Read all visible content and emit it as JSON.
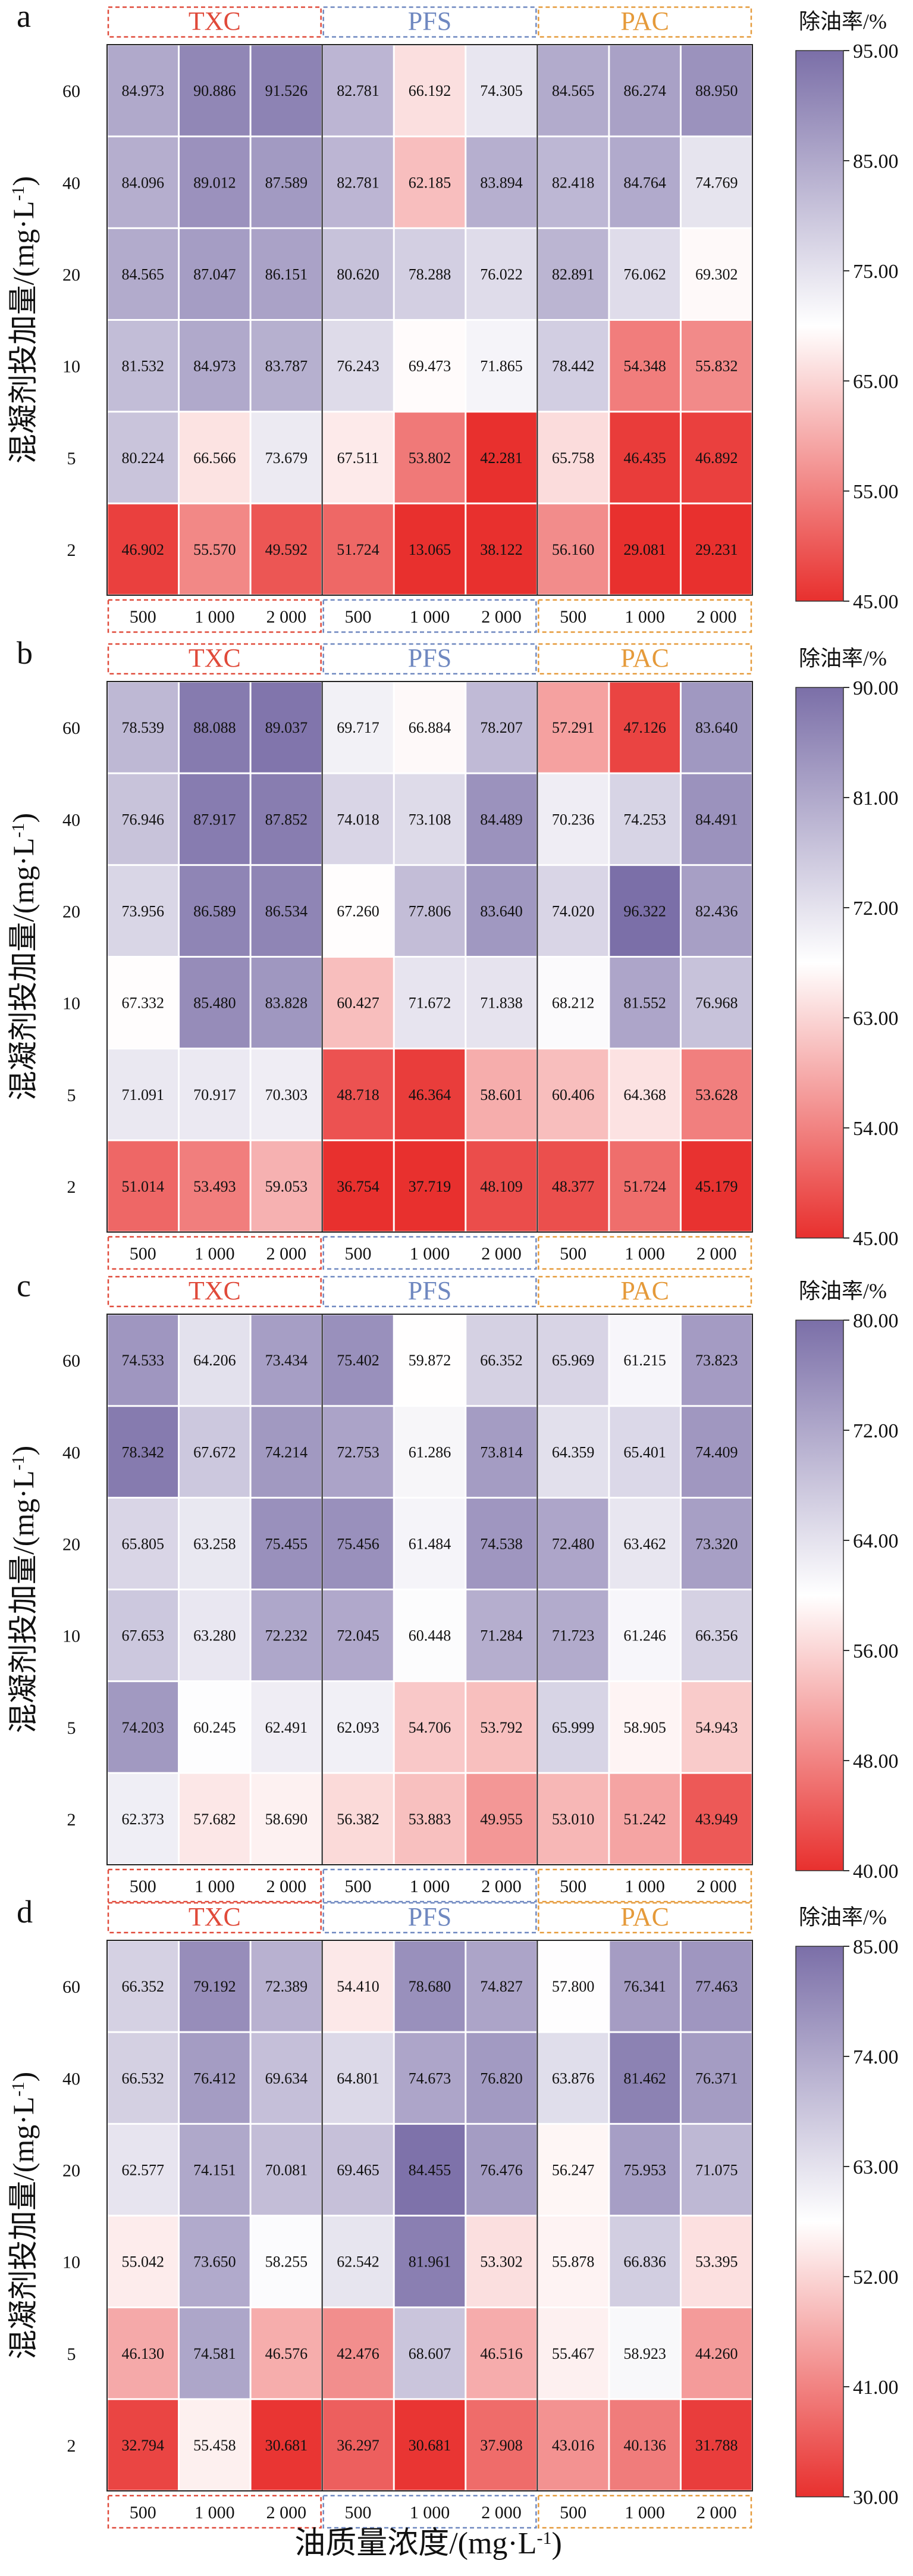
{
  "chart_data": [
    {
      "type": "heatmap",
      "panel": "a",
      "groups": [
        {
          "name": "TXC",
          "color": "#e04a3a"
        },
        {
          "name": "PFS",
          "color": "#6f88c0"
        },
        {
          "name": "PAC",
          "color": "#e59a3a"
        }
      ],
      "x_ticks": [
        "500",
        "1 000",
        "2 000",
        "500",
        "1 000",
        "2 000",
        "500",
        "1 000",
        "2 000"
      ],
      "y_ticks": [
        "60",
        "40",
        "20",
        "10",
        "5",
        "2"
      ],
      "values": [
        [
          "84.973",
          "90.886",
          "91.526",
          "82.781",
          "66.192",
          "74.305",
          "84.565",
          "86.274",
          "88.950"
        ],
        [
          "84.096",
          "89.012",
          "87.589",
          "82.781",
          "62.185",
          "83.894",
          "82.418",
          "84.764",
          "74.769"
        ],
        [
          "84.565",
          "87.047",
          "86.151",
          "80.620",
          "78.288",
          "76.022",
          "82.891",
          "76.062",
          "69.302"
        ],
        [
          "81.532",
          "84.973",
          "83.787",
          "76.243",
          "69.473",
          "71.865",
          "78.442",
          "54.348",
          "55.832"
        ],
        [
          "80.224",
          "66.566",
          "73.679",
          "67.511",
          "53.802",
          "42.281",
          "65.758",
          "46.435",
          "46.892"
        ],
        [
          "46.902",
          "55.570",
          "49.592",
          "51.724",
          "13.065",
          "38.122",
          "56.160",
          "29.081",
          "29.231"
        ]
      ],
      "colorbar": {
        "title": "除油率/%",
        "min": 45,
        "max": 95,
        "ticks": [
          "95.00",
          "85.00",
          "75.00",
          "65.00",
          "55.00",
          "45.00"
        ]
      }
    },
    {
      "type": "heatmap",
      "panel": "b",
      "groups": [
        {
          "name": "TXC",
          "color": "#e04a3a"
        },
        {
          "name": "PFS",
          "color": "#6f88c0"
        },
        {
          "name": "PAC",
          "color": "#e59a3a"
        }
      ],
      "x_ticks": [
        "500",
        "1 000",
        "2 000",
        "500",
        "1 000",
        "2 000",
        "500",
        "1 000",
        "2 000"
      ],
      "y_ticks": [
        "60",
        "40",
        "20",
        "10",
        "5",
        "2"
      ],
      "values": [
        [
          "78.539",
          "88.088",
          "89.037",
          "69.717",
          "66.884",
          "78.207",
          "57.291",
          "47.126",
          "83.640"
        ],
        [
          "76.946",
          "87.917",
          "87.852",
          "74.018",
          "73.108",
          "84.489",
          "70.236",
          "74.253",
          "84.491"
        ],
        [
          "73.956",
          "86.589",
          "86.534",
          "67.260",
          "77.806",
          "83.640",
          "74.020",
          "96.322",
          "82.436"
        ],
        [
          "67.332",
          "85.480",
          "83.828",
          "60.427",
          "71.672",
          "71.838",
          "68.212",
          "81.552",
          "76.968"
        ],
        [
          "71.091",
          "70.917",
          "70.303",
          "48.718",
          "46.364",
          "58.601",
          "60.406",
          "64.368",
          "53.628"
        ],
        [
          "51.014",
          "53.493",
          "59.053",
          "36.754",
          "37.719",
          "48.109",
          "48.377",
          "51.724",
          "45.179"
        ]
      ],
      "colorbar": {
        "title": "除油率/%",
        "min": 45,
        "max": 90,
        "ticks": [
          "90.00",
          "81.00",
          "72.00",
          "63.00",
          "54.00",
          "45.00"
        ]
      }
    },
    {
      "type": "heatmap",
      "panel": "c",
      "groups": [
        {
          "name": "TXC",
          "color": "#e04a3a"
        },
        {
          "name": "PFS",
          "color": "#6f88c0"
        },
        {
          "name": "PAC",
          "color": "#e59a3a"
        }
      ],
      "x_ticks": [
        "500",
        "1 000",
        "2 000",
        "500",
        "1 000",
        "2 000",
        "500",
        "1 000",
        "2 000"
      ],
      "y_ticks": [
        "60",
        "40",
        "20",
        "10",
        "5",
        "2"
      ],
      "values": [
        [
          "74.533",
          "64.206",
          "73.434",
          "75.402",
          "59.872",
          "66.352",
          "65.969",
          "61.215",
          "73.823"
        ],
        [
          "78.342",
          "67.672",
          "74.214",
          "72.753",
          "61.286",
          "73.814",
          "64.359",
          "65.401",
          "74.409"
        ],
        [
          "65.805",
          "63.258",
          "75.455",
          "75.456",
          "61.484",
          "74.538",
          "72.480",
          "63.462",
          "73.320"
        ],
        [
          "67.653",
          "63.280",
          "72.232",
          "72.045",
          "60.448",
          "71.284",
          "71.723",
          "61.246",
          "66.356"
        ],
        [
          "74.203",
          "60.245",
          "62.491",
          "62.093",
          "54.706",
          "53.792",
          "65.999",
          "58.905",
          "54.943"
        ],
        [
          "62.373",
          "57.682",
          "58.690",
          "56.382",
          "53.883",
          "49.955",
          "53.010",
          "51.242",
          "43.949"
        ]
      ],
      "colorbar": {
        "title": "除油率/%",
        "min": 40,
        "max": 80,
        "ticks": [
          "80.00",
          "72.00",
          "64.00",
          "56.00",
          "48.00",
          "40.00"
        ]
      }
    },
    {
      "type": "heatmap",
      "panel": "d",
      "groups": [
        {
          "name": "TXC",
          "color": "#e04a3a"
        },
        {
          "name": "PFS",
          "color": "#6f88c0"
        },
        {
          "name": "PAC",
          "color": "#e59a3a"
        }
      ],
      "x_ticks": [
        "500",
        "1 000",
        "2 000",
        "500",
        "1 000",
        "2 000",
        "500",
        "1 000",
        "2 000"
      ],
      "y_ticks": [
        "60",
        "40",
        "20",
        "10",
        "5",
        "2"
      ],
      "values": [
        [
          "66.352",
          "79.192",
          "72.389",
          "54.410",
          "78.680",
          "74.827",
          "57.800",
          "76.341",
          "77.463"
        ],
        [
          "66.532",
          "76.412",
          "69.634",
          "64.801",
          "74.673",
          "76.820",
          "63.876",
          "81.462",
          "76.371"
        ],
        [
          "62.577",
          "74.151",
          "70.081",
          "69.465",
          "84.455",
          "76.476",
          "56.247",
          "75.953",
          "71.075"
        ],
        [
          "55.042",
          "73.650",
          "58.255",
          "62.542",
          "81.961",
          "53.302",
          "55.878",
          "66.836",
          "53.395"
        ],
        [
          "46.130",
          "74.581",
          "46.576",
          "42.476",
          "68.607",
          "46.516",
          "55.467",
          "58.923",
          "44.260"
        ],
        [
          "32.794",
          "55.458",
          "30.681",
          "36.297",
          "30.681",
          "37.908",
          "43.016",
          "40.136",
          "31.788"
        ]
      ],
      "colorbar": {
        "title": "除油率/%",
        "min": 30,
        "max": 85,
        "ticks": [
          "85.00",
          "74.00",
          "63.00",
          "52.00",
          "41.00",
          "30.00"
        ]
      }
    }
  ],
  "labels": {
    "ylabel": "混凝剂投加量/(mg·L",
    "ylabel_sup": "-1",
    "ylabel_end": ")",
    "xlabel": "油质量浓度/(mg·L",
    "xlabel_sup": "-1",
    "xlabel_end": ")"
  },
  "colors": {
    "low": "#e8302e",
    "mid": "#ffffff",
    "high": "#7b6fa8"
  }
}
